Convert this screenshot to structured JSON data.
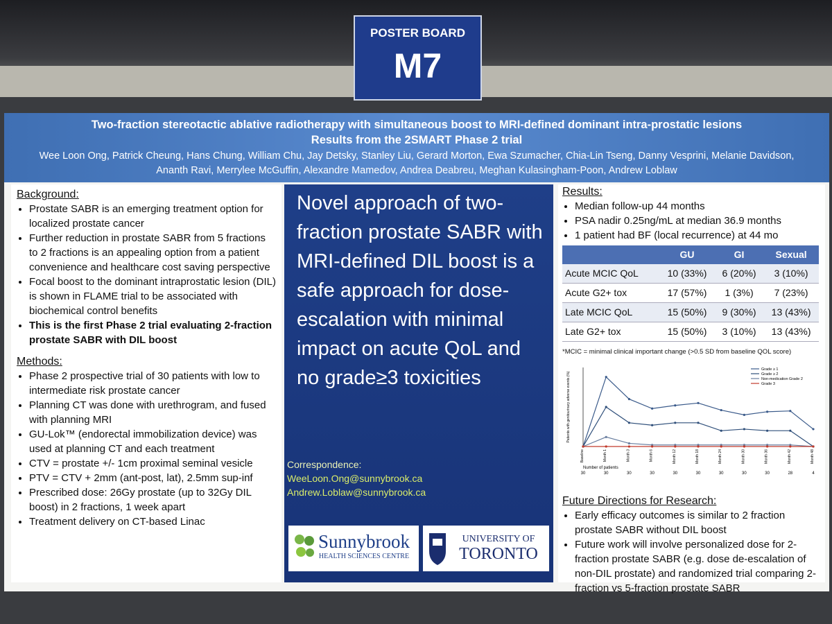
{
  "sign": {
    "label": "POSTER BOARD",
    "board": "M7"
  },
  "header": {
    "title_line1": "Two-fraction stereotactic ablative radiotherapy with simultaneous boost to MRI-defined dominant intra-prostatic lesions",
    "title_line2": "Results from the 2SMART Phase 2 trial",
    "authors": "Wee Loon Ong, Patrick Cheung, Hans Chung, William Chu, Jay Detsky, Stanley Liu, Gerard Morton, Ewa Szumacher, Chia-Lin Tseng, Danny Vesprini, Melanie Davidson, Ananth Ravi, Merrylee McGuffin, Alexandre Mamedov, Andrea Deabreu, Meghan Kulasingham-Poon, Andrew Loblaw"
  },
  "background": {
    "heading": "Background:",
    "bullets": [
      "Prostate SABR is an emerging treatment option for localized prostate cancer",
      "Further reduction in prostate SABR from 5 fractions to 2 fractions is an appealing option from a patient convenience and healthcare cost saving perspective",
      "Focal boost to the dominant intraprostatic lesion (DIL) is shown in FLAME trial to be associated with biochemical control benefits",
      "This is the first Phase 2 trial evaluating 2-fraction prostate SABR with DIL boost"
    ]
  },
  "methods": {
    "heading": "Methods:",
    "bullets": [
      "Phase 2 prospective trial of 30 patients with low to intermediate risk prostate cancer",
      "Planning CT was done with urethrogram, and fused with planning MRI",
      "GU-Lok™ (endorectal immobilization device) was used at planning CT and each treatment",
      "CTV = prostate +/- 1cm proximal seminal vesicle",
      "PTV = CTV + 2mm (ant-post, lat), 2.5mm sup-inf",
      "Prescribed dose: 26Gy prostate (up to 32Gy DIL boost) in 2 fractions, 1 week apart",
      "Treatment delivery on CT-based Linac"
    ]
  },
  "center": {
    "message": "Novel approach of two-fraction prostate SABR with MRI-defined DIL boost is a safe approach for dose-escalation with minimal impact on acute QoL and no grade≥3 toxicities",
    "correspondence_heading": "Correspondence:",
    "emails": [
      "WeeLoon.Ong@sunnybrook.ca",
      "Andrew.Loblaw@sunnybrook.ca"
    ],
    "logo_sunnybrook": {
      "name": "Sunnybrook",
      "sub": "HEALTH SCIENCES CENTRE"
    },
    "logo_toronto": {
      "line1": "UNIVERSITY OF",
      "line2": "TORONTO"
    }
  },
  "results": {
    "heading": "Results:",
    "bullets": [
      "Median follow-up 44 months",
      "PSA nadir 0.25ng/mL at median 36.9 months",
      "1 patient had BF (local recurrence) at 44 mo"
    ],
    "table": {
      "columns": [
        "GU",
        "GI",
        "Sexual"
      ],
      "rows": [
        {
          "label": "Acute MCIC QoL",
          "cells": [
            "10 (33%)",
            "6 (20%)",
            "3 (10%)"
          ]
        },
        {
          "label": "Acute G2+ tox",
          "cells": [
            "17 (57%)",
            "1 (3%)",
            "7 (23%)"
          ]
        },
        {
          "label": "Late MCIC QoL",
          "cells": [
            "15 (50%)",
            "9 (30%)",
            "13 (43%)"
          ]
        },
        {
          "label": "Late G2+ tox",
          "cells": [
            "15 (50%)",
            "3 (10%)",
            "13 (43%)"
          ]
        }
      ]
    },
    "footnote": "*MCIC = minimal clinical important change (>0.5 SD from baseline QOL score)"
  },
  "chart_data": {
    "type": "line",
    "ylabel": "Patients with genitourinary adverse events (%)",
    "categories": [
      "Baseline",
      "Month 1",
      "Month 3",
      "Month 6",
      "Month 12",
      "Month 18",
      "Month 24",
      "Month 30",
      "Month 36",
      "Month 42",
      "Month 48"
    ],
    "patients_label": "Number of patients",
    "patients": [
      "30",
      "30",
      "30",
      "30",
      "30",
      "30",
      "30",
      "30",
      "30",
      "28",
      "4"
    ],
    "ylim": [
      0,
      100
    ],
    "series": [
      {
        "name": "Grade ≥ 1",
        "color": "#3a5a8a",
        "values": [
          0,
          88,
          60,
          48,
          52,
          55,
          46,
          40,
          44,
          45,
          22
        ]
      },
      {
        "name": "Grade ≥ 2",
        "color": "#2f4f7a",
        "values": [
          0,
          50,
          30,
          27,
          30,
          30,
          20,
          22,
          20,
          20,
          0
        ]
      },
      {
        "name": "Non-medication Grade 2",
        "color": "#6a7fa0",
        "values": [
          0,
          12,
          4,
          2,
          2,
          2,
          2,
          2,
          2,
          2,
          0
        ]
      },
      {
        "name": "Grade 3",
        "color": "#c0392b",
        "values": [
          0,
          0,
          0,
          0,
          0,
          0,
          0,
          0,
          0,
          0,
          0
        ]
      }
    ]
  },
  "future": {
    "heading": "Future Directions for Research:",
    "bullets": [
      "Early efficacy outcomes is similar to 2 fraction prostate SABR without DIL boost",
      "Future work will involve personalized dose for 2-fraction prostate SABR (e.g. dose de-escalation of non-DIL prostate) and randomized trial comparing 2-fraction vs 5-fraction prostate SABR"
    ]
  }
}
